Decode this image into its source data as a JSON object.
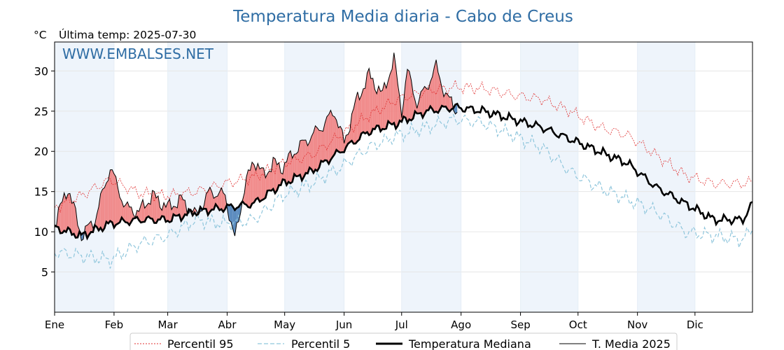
{
  "chart_data": {
    "type": "line",
    "title": "Temperatura Media diaria - Cabo de Creus",
    "unit_label": "°C",
    "last_temp_label": "Última temp: 2025-07-30",
    "watermark": "WWW.EMBALSES.NET",
    "ylim": [
      0,
      33.6
    ],
    "y_ticks": [
      5,
      10,
      15,
      20,
      25,
      30
    ],
    "months": [
      "Ene",
      "Feb",
      "Mar",
      "Abr",
      "May",
      "Jun",
      "Jul",
      "Ago",
      "Sep",
      "Oct",
      "Nov",
      "Dic"
    ],
    "grid": true,
    "legend_position": "bottom-center",
    "colors": {
      "p95": "#e03030",
      "p5": "#8fc6dc",
      "median": "#000000",
      "current": "#000000",
      "above_fill": "#f08080",
      "below_fill": "#4a7fb8",
      "month_band": "#eef4fb"
    },
    "series": [
      {
        "name": "Percentil 95",
        "style": "red-dotted",
        "x": [
          1,
          15,
          30,
          45,
          60,
          75,
          90,
          105,
          120,
          135,
          150,
          165,
          180,
          195,
          210,
          225,
          240,
          255,
          270,
          285,
          300,
          315,
          330,
          345,
          360,
          365
        ],
        "values": [
          13.0,
          14.5,
          16.5,
          14.8,
          14.5,
          15.0,
          16.0,
          16.8,
          18.5,
          19.5,
          22.0,
          24.5,
          26.5,
          27.5,
          28.0,
          27.8,
          27.0,
          26.5,
          25.0,
          23.0,
          22.0,
          19.5,
          17.0,
          16.0,
          16.0,
          16.2
        ]
      },
      {
        "name": "Percentil 5",
        "style": "lightblue-dashed",
        "x": [
          1,
          15,
          30,
          45,
          60,
          75,
          90,
          105,
          120,
          135,
          150,
          165,
          180,
          195,
          210,
          225,
          240,
          255,
          270,
          285,
          300,
          315,
          330,
          345,
          360,
          365
        ],
        "values": [
          7.5,
          7.0,
          6.5,
          8.5,
          9.5,
          11.5,
          11.0,
          11.5,
          14.5,
          16.0,
          18.0,
          20.5,
          22.0,
          23.0,
          24.0,
          23.5,
          22.0,
          20.5,
          17.5,
          15.5,
          14.0,
          12.5,
          10.0,
          9.5,
          9.0,
          10.5
        ]
      },
      {
        "name": "Temperatura Mediana",
        "style": "black-thick",
        "x": [
          1,
          15,
          30,
          45,
          60,
          75,
          90,
          105,
          120,
          135,
          150,
          165,
          180,
          195,
          210,
          225,
          240,
          255,
          270,
          285,
          300,
          315,
          330,
          345,
          360,
          365
        ],
        "values": [
          10.5,
          9.5,
          11.0,
          11.5,
          11.5,
          12.5,
          13.0,
          13.5,
          16.0,
          17.5,
          20.0,
          22.5,
          23.5,
          25.0,
          25.5,
          25.0,
          24.0,
          23.0,
          21.5,
          20.0,
          18.5,
          15.5,
          13.5,
          11.5,
          11.5,
          13.5
        ]
      },
      {
        "name": "T. Media 2025",
        "style": "black-thin",
        "x": [
          1,
          8,
          15,
          22,
          30,
          38,
          45,
          52,
          60,
          67,
          75,
          82,
          90,
          95,
          100,
          105,
          110,
          115,
          120,
          126,
          133,
          140,
          147,
          152,
          158,
          165,
          172,
          178,
          182,
          185,
          190,
          195,
          200,
          205,
          211
        ],
        "values": [
          11.0,
          15.5,
          9.5,
          11.5,
          18.0,
          13.0,
          12.5,
          14.5,
          13.0,
          14.0,
          12.0,
          15.0,
          14.5,
          9.0,
          15.5,
          19.0,
          17.0,
          18.5,
          18.0,
          20.0,
          21.5,
          23.0,
          25.0,
          21.0,
          26.0,
          29.5,
          27.0,
          31.5,
          25.0,
          30.0,
          26.0,
          28.0,
          30.5,
          27.0,
          25.0
        ]
      }
    ]
  },
  "legend": {
    "p95": "Percentil 95",
    "p5": "Percentil 5",
    "median": "Temperatura Mediana",
    "current": "T. Media 2025"
  }
}
